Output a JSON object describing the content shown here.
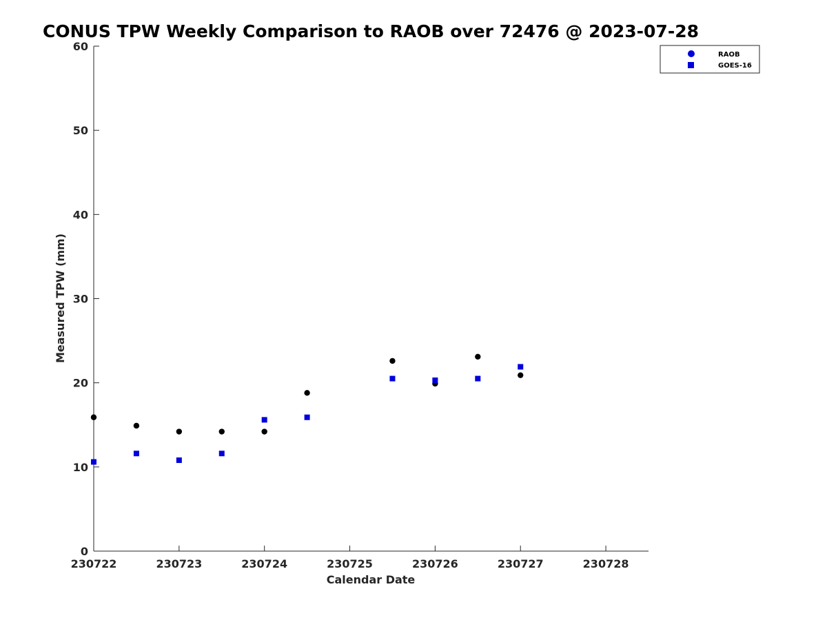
{
  "chart_data": {
    "type": "scatter",
    "title": "CONUS TPW Weekly Comparison to RAOB over 72476 @ 2023-07-28",
    "xlabel": "Calendar Date",
    "ylabel": "Measured TPW (mm)",
    "xlim": [
      230722,
      230728.5
    ],
    "ylim": [
      0,
      60
    ],
    "x_ticks": [
      230722,
      230723,
      230724,
      230725,
      230726,
      230727,
      230728
    ],
    "x_tick_labels": [
      "230722",
      "230723",
      "230724",
      "230725",
      "230726",
      "230727",
      "230728"
    ],
    "y_ticks": [
      0,
      10,
      20,
      30,
      40,
      50,
      60
    ],
    "y_tick_labels": [
      "0",
      "10",
      "20",
      "30",
      "40",
      "50",
      "60"
    ],
    "grid": false,
    "legend_position": "top-right",
    "series": [
      {
        "name": "RAOB",
        "marker": "circle",
        "color": "#000000",
        "legend_color": "#0000dd",
        "x": [
          230722,
          230722.5,
          230723,
          230723.5,
          230724,
          230724.5,
          230725.5,
          230726,
          230726.5,
          230727
        ],
        "y": [
          15.9,
          14.9,
          14.2,
          14.2,
          14.2,
          18.8,
          22.6,
          19.9,
          23.1,
          20.9
        ]
      },
      {
        "name": "GOES-16",
        "marker": "square",
        "color": "#0000dd",
        "legend_color": "#0000dd",
        "x": [
          230722,
          230722.5,
          230723,
          230723.5,
          230724,
          230724.5,
          230725.5,
          230726,
          230726.5,
          230727
        ],
        "y": [
          10.6,
          11.6,
          10.8,
          11.6,
          15.6,
          15.9,
          20.5,
          20.3,
          20.5,
          21.9
        ]
      }
    ]
  }
}
